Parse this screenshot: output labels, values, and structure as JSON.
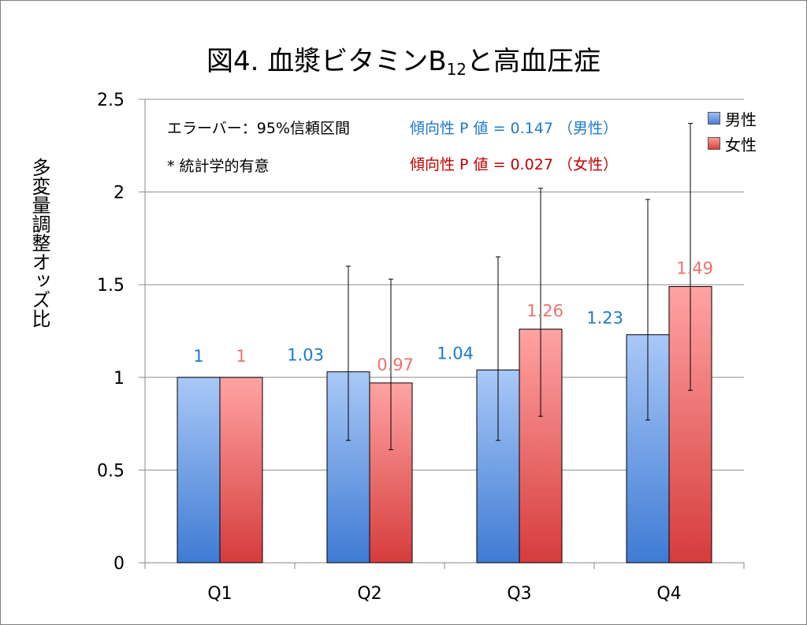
{
  "title_main": "図4. 血漿ビタミンB",
  "title_sub": "12",
  "title_tail": "と高血圧症",
  "ylabel": "多変量調整オッズ比",
  "annotations": {
    "error_bar_note": "エラーバー：95%信頼区間",
    "significance_note": "* 統計学的有意",
    "trend_male": "傾向性 P 値 = 0.147 （男性）",
    "trend_female": "傾向性 P 値 = 0.027 （女性）"
  },
  "legend": [
    {
      "label": "男性",
      "color": "#7aa7ea"
    },
    {
      "label": "女性",
      "color": "#f08080"
    }
  ],
  "colors": {
    "male_label": "#1e7ac8",
    "female_label": "#f07070"
  },
  "chart_data": {
    "type": "bar",
    "categories": [
      "Q1",
      "Q2",
      "Q3",
      "Q4"
    ],
    "ylim": [
      0,
      2.5
    ],
    "yticks": [
      "0",
      "0.5",
      "1",
      "1.5",
      "2",
      "2.5"
    ],
    "grid": true,
    "legend_position": "top-right",
    "series": [
      {
        "name": "男性",
        "values": [
          1,
          1.03,
          1.04,
          1.23
        ],
        "labels": [
          "1",
          "1.03",
          "1.04",
          "1.23"
        ],
        "ci_low": [
          1,
          0.66,
          0.66,
          0.77
        ],
        "ci_high": [
          1,
          1.6,
          1.65,
          1.96
        ]
      },
      {
        "name": "女性",
        "values": [
          1,
          0.97,
          1.26,
          1.49
        ],
        "labels": [
          "1",
          "0.97",
          "1.26",
          "1.49"
        ],
        "ci_low": [
          1,
          0.61,
          0.79,
          0.93
        ],
        "ci_high": [
          1,
          1.53,
          2.02,
          2.37
        ]
      }
    ]
  }
}
